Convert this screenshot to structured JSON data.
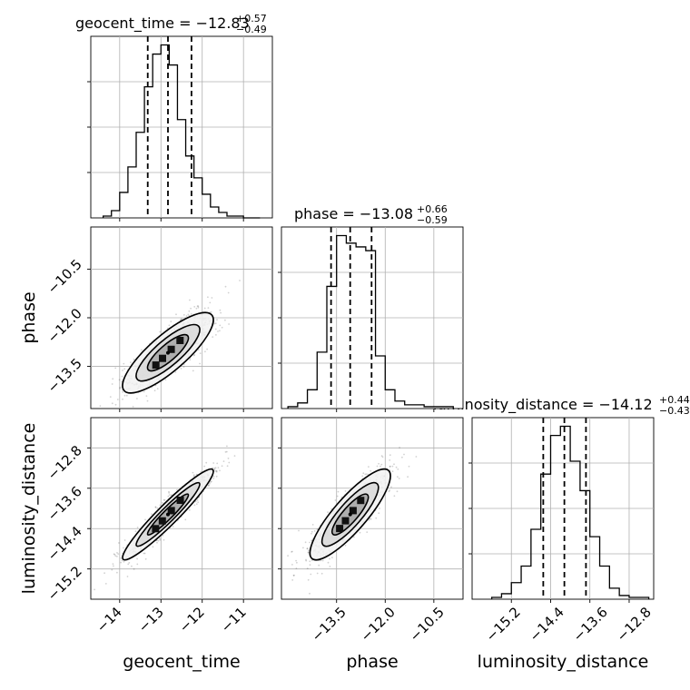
{
  "chart_data": [
    {
      "type": "histogram",
      "panel": "geocent_time",
      "title": {
        "param": "geocent_time",
        "median": "−12.83",
        "plus": "+0.57",
        "minus": "−0.49"
      },
      "xlim": [
        -14.7,
        -10.3
      ],
      "bin_edges": [
        -14.4,
        -14.2,
        -14.0,
        -13.8,
        -13.6,
        -13.4,
        -13.2,
        -13.0,
        -12.8,
        -12.6,
        -12.4,
        -12.2,
        -12.0,
        -11.8,
        -11.6,
        -11.4,
        -11.2,
        -11.0,
        -10.8,
        -10.6
      ],
      "counts": [
        1,
        4,
        14,
        28,
        47,
        72,
        90,
        95,
        84,
        54,
        34,
        22,
        13,
        6,
        3,
        1,
        1,
        0,
        0
      ],
      "quantiles": [
        -13.32,
        -12.83,
        -12.26
      ]
    },
    {
      "type": "histogram",
      "panel": "phase",
      "title": {
        "param": "phase",
        "median": "−13.08",
        "plus": "+0.66",
        "minus": "−0.59"
      },
      "xlim": [
        -15.2,
        -9.6
      ],
      "bin_edges": [
        -15.0,
        -14.7,
        -14.4,
        -14.1,
        -13.8,
        -13.5,
        -13.2,
        -12.9,
        -12.6,
        -12.3,
        -12.0,
        -11.7,
        -11.4,
        -11.1,
        -10.8,
        -10.5,
        -10.2,
        -9.9
      ],
      "counts": [
        1,
        3,
        10,
        30,
        65,
        92,
        88,
        86,
        84,
        28,
        10,
        4,
        2,
        2,
        1,
        1,
        1
      ],
      "quantiles": [
        -13.67,
        -13.08,
        -12.42
      ]
    },
    {
      "type": "histogram",
      "panel": "luminosity_distance",
      "title": {
        "param": "luminosity_distance",
        "median": "−14.12",
        "plus": "+0.44",
        "minus": "−0.43"
      },
      "xlim": [
        -16.0,
        -12.3
      ],
      "bin_edges": [
        -15.6,
        -15.4,
        -15.2,
        -15.0,
        -14.8,
        -14.6,
        -14.4,
        -14.2,
        -14.0,
        -13.8,
        -13.6,
        -13.4,
        -13.2,
        -13.0,
        -12.8,
        -12.6,
        -12.4
      ],
      "counts": [
        1,
        3,
        9,
        18,
        38,
        68,
        89,
        94,
        75,
        59,
        34,
        18,
        6,
        2,
        1,
        1
      ],
      "quantiles": [
        -14.55,
        -14.12,
        -13.68
      ]
    },
    {
      "type": "scatter",
      "panel": "phase_vs_geocent_time",
      "xlim": [
        -14.7,
        -10.3
      ],
      "ylim": [
        -14.8,
        -9.2
      ],
      "center": [
        -12.83,
        -13.08
      ],
      "sd": [
        0.55,
        0.62
      ],
      "rho": 0.82
    },
    {
      "type": "scatter",
      "panel": "luminosity_distance_vs_geocent_time",
      "xlim": [
        -14.7,
        -10.3
      ],
      "ylim": [
        -15.8,
        -12.2
      ],
      "center": [
        -12.83,
        -14.12
      ],
      "sd": [
        0.55,
        0.45
      ],
      "rho": 0.95
    },
    {
      "type": "scatter",
      "panel": "luminosity_distance_vs_phase",
      "xlim": [
        -15.2,
        -9.6
      ],
      "ylim": [
        -15.8,
        -12.2
      ],
      "center": [
        -13.08,
        -14.12
      ],
      "sd": [
        0.62,
        0.45
      ],
      "rho": 0.85
    }
  ],
  "axes": {
    "x_labels": [
      "geocent_time",
      "phase",
      "luminosity_distance"
    ],
    "y_labels": [
      "phase",
      "luminosity_distance"
    ],
    "geocent_ticks": [
      "−14",
      "−13",
      "−12",
      "−11"
    ],
    "phase_ticks": [
      "−13.5",
      "−12.0",
      "−10.5"
    ],
    "lumdist_ticks": [
      "−15.2",
      "−14.4",
      "−13.6",
      "−12.8"
    ]
  }
}
